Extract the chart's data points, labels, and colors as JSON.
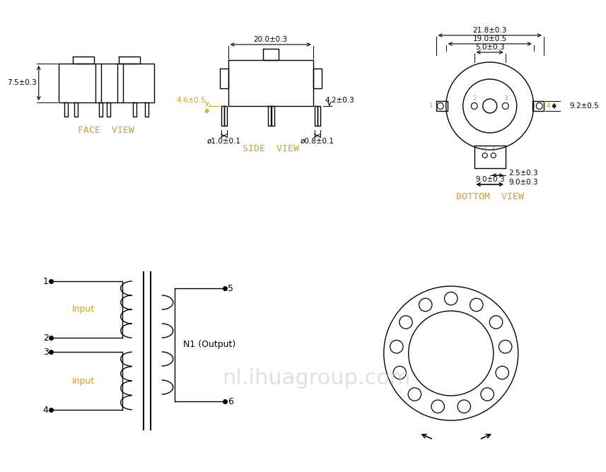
{
  "bg_color": "#ffffff",
  "line_color": "#000000",
  "orange_text": "#c8a028",
  "watermark": "nl.ihuagroup.com",
  "watermark_color": "#cccccc",
  "face_view_label": "FACE  VIEW",
  "side_view_label": "SIDE  VIEW",
  "bottom_view_label": "BOTTOM  VIEW",
  "dim_7_5": "7.5±0.3",
  "dim_20": "20.0±0.3",
  "dim_4_6": "4.6±0.5",
  "dim_4_2": "4.2±0.3",
  "dim_phi1": "ø1.0±0.1",
  "dim_phi08": "ø0.8±0.1",
  "dim_21_8": "21.8±0.3",
  "dim_19": "19.0±0.5",
  "dim_5": "5.0±0.3",
  "dim_9_2": "9.2±0.5",
  "dim_2_5": "2.5±0.3",
  "dim_9": "9.0±0.3",
  "label_input": "Input",
  "label_n1": "N1 (Output)"
}
